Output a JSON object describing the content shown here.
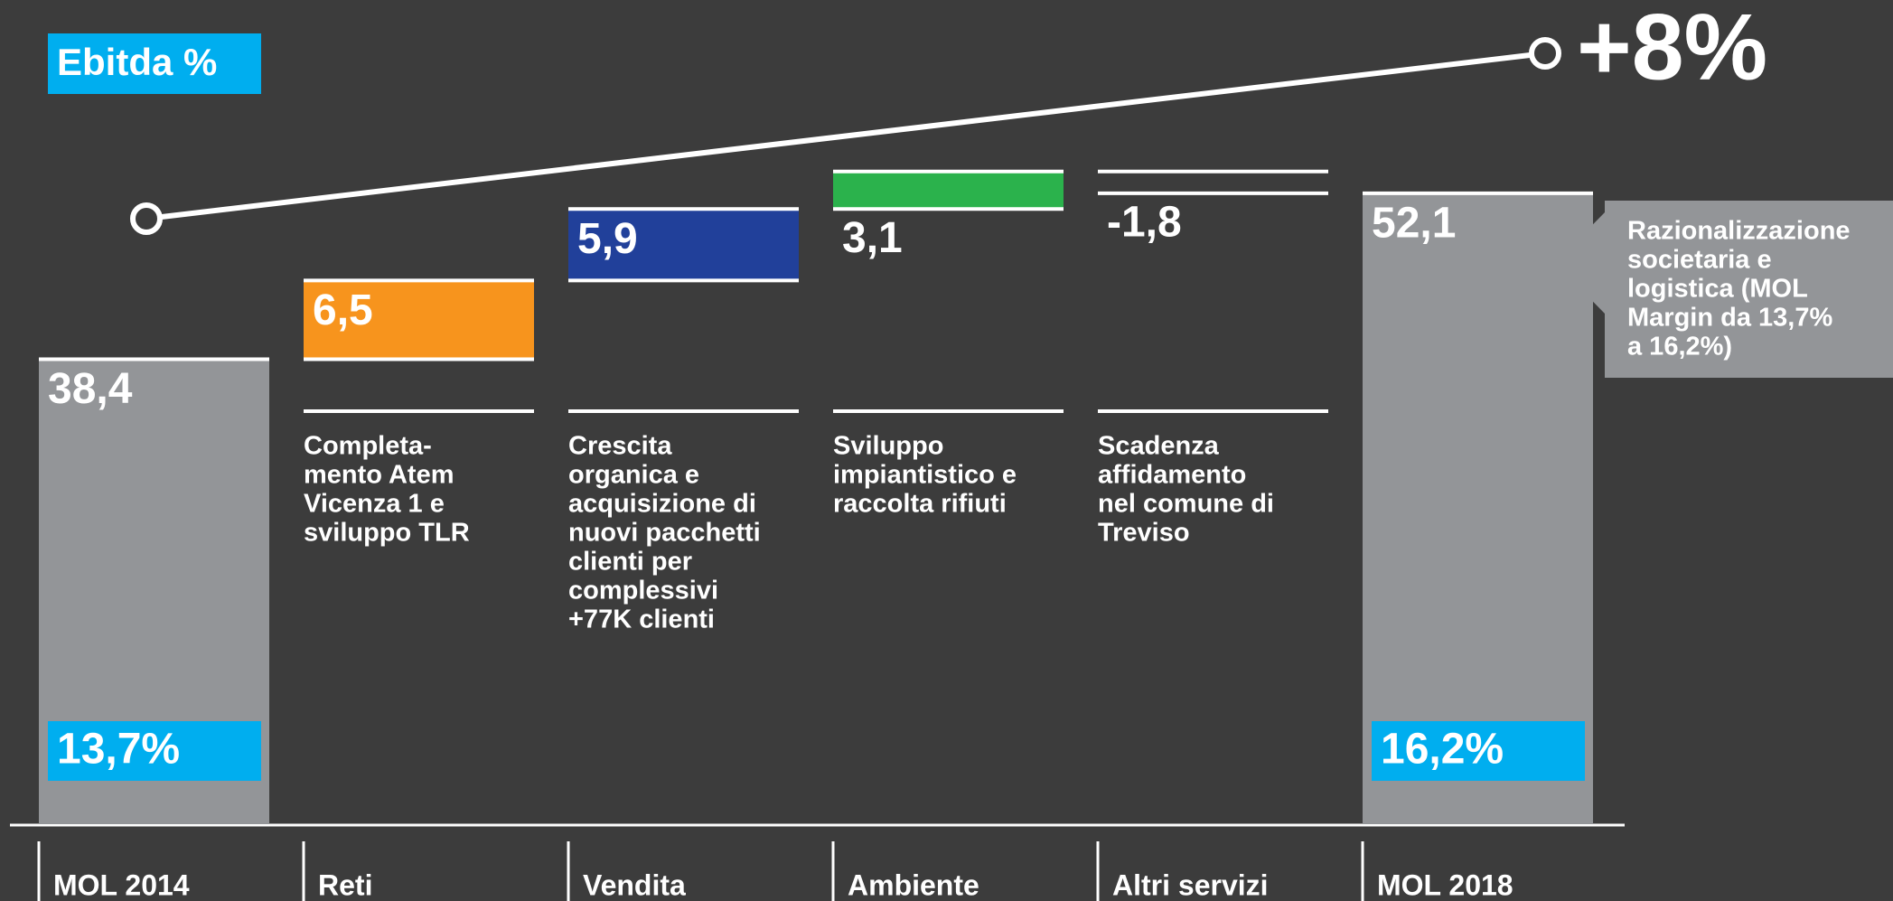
{
  "chart_data": {
    "type": "waterfall",
    "title": "Ebitda %",
    "categories": [
      "MOL 2014",
      "Reti",
      "Vendita",
      "Ambiente",
      "Altri servizi",
      "MOL 2018"
    ],
    "measure": [
      "total",
      "relative",
      "relative",
      "relative",
      "relative",
      "total"
    ],
    "values": [
      38.4,
      6.5,
      5.9,
      3.1,
      -1.8,
      52.1
    ],
    "value_labels": [
      "38,4",
      "6,5",
      "5,9",
      "3,1",
      "-1,8",
      "52,1"
    ],
    "colors": [
      "#939598",
      "#f7941d",
      "#21409a",
      "#2bb24c",
      "#3c3c3c",
      "#939598"
    ],
    "margins": [
      {
        "index": 0,
        "label": "13,7%"
      },
      {
        "index": 5,
        "label": "16,2%"
      }
    ],
    "descriptions": [
      [],
      [
        "Completa-",
        "mento Atem",
        "Vicenza 1 e",
        "sviluppo TLR"
      ],
      [
        "Crescita",
        "organica e",
        "acquisizione di",
        "nuovi pacchetti",
        "clienti per",
        "complessivi",
        "+77K clienti"
      ],
      [
        "Sviluppo",
        "impiantistico e",
        "raccolta rifiuti"
      ],
      [
        "Scadenza",
        "affidamento",
        "nel comune di",
        "Treviso"
      ],
      []
    ],
    "annotations": {
      "change": "+8%",
      "callout": [
        "Razionalizzazione",
        "societaria e",
        "logistica (MOL",
        "Margin da 13,7%",
        "a 16,2%)"
      ]
    }
  }
}
